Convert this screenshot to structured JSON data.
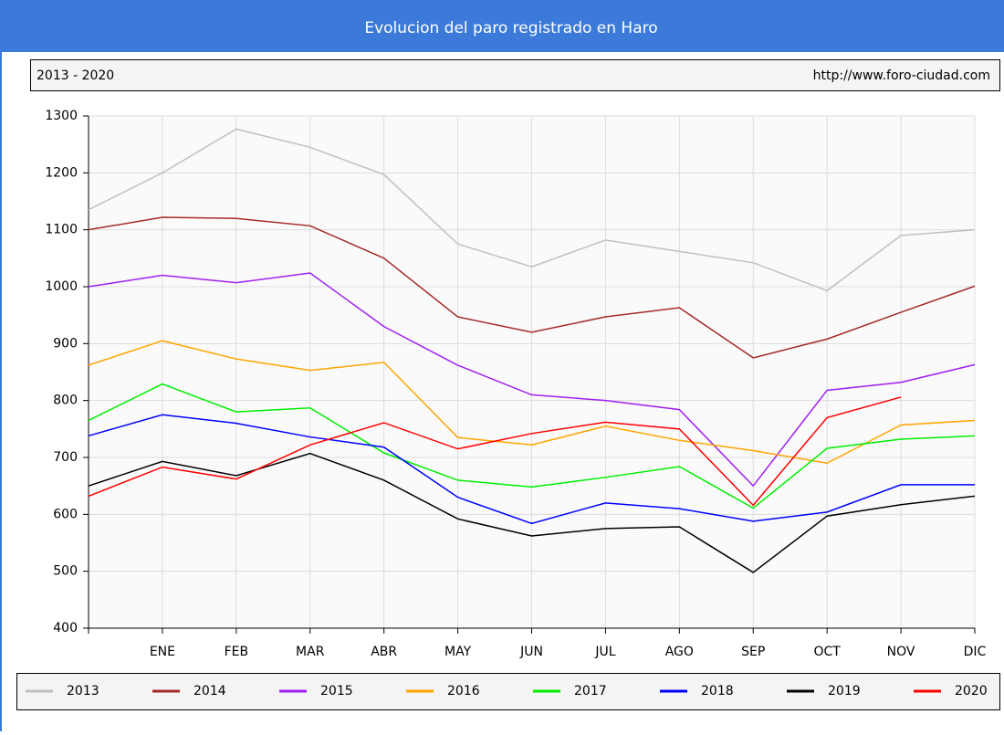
{
  "chart_data": {
    "type": "line",
    "title": "Evolucion del paro registrado en Haro",
    "subtitle": "2013 - 2020",
    "source": "http://www.foro-ciudad.com",
    "categories": [
      null,
      "ENE",
      "FEB",
      "MAR",
      "ABR",
      "MAY",
      "JUN",
      "JUL",
      "AGO",
      "SEP",
      "OCT",
      "NOV",
      "DIC"
    ],
    "ylim": [
      400,
      1300
    ],
    "yticks": [
      400,
      500,
      600,
      700,
      800,
      900,
      1000,
      1100,
      1200,
      1300
    ],
    "grid": true,
    "legend": "bottom",
    "series": [
      {
        "name": "2013",
        "color": "#c0c0c0",
        "values": [
          1135,
          1200,
          1277,
          1245,
          1197,
          1075,
          1035,
          1082,
          1062,
          1042,
          993,
          1090,
          1100
        ]
      },
      {
        "name": "2014",
        "color": "#a52a2a",
        "values": [
          1100,
          1122,
          1120,
          1107,
          1050,
          947,
          920,
          947,
          963,
          875,
          908,
          955,
          1001
        ]
      },
      {
        "name": "2015",
        "color": "#a020f0",
        "values": [
          1000,
          1020,
          1007,
          1024,
          930,
          862,
          810,
          800,
          784,
          650,
          818,
          832,
          863
        ]
      },
      {
        "name": "2016",
        "color": "#ffa500",
        "values": [
          862,
          905,
          873,
          853,
          867,
          735,
          722,
          755,
          730,
          712,
          690,
          757,
          765
        ]
      },
      {
        "name": "2017",
        "color": "#00ee00",
        "values": [
          765,
          829,
          780,
          787,
          708,
          660,
          648,
          665,
          684,
          611,
          716,
          732,
          738
        ]
      },
      {
        "name": "2018",
        "color": "#0000ff",
        "values": [
          738,
          775,
          760,
          736,
          718,
          630,
          584,
          620,
          610,
          588,
          604,
          652,
          652
        ]
      },
      {
        "name": "2019",
        "color": "#000000",
        "values": [
          650,
          693,
          668,
          707,
          660,
          592,
          562,
          575,
          578,
          498,
          597,
          617,
          632
        ]
      },
      {
        "name": "2020",
        "color": "#ff0000",
        "values": [
          632,
          683,
          662,
          722,
          761,
          715,
          742,
          762,
          750,
          616,
          770,
          806,
          null
        ]
      }
    ]
  }
}
